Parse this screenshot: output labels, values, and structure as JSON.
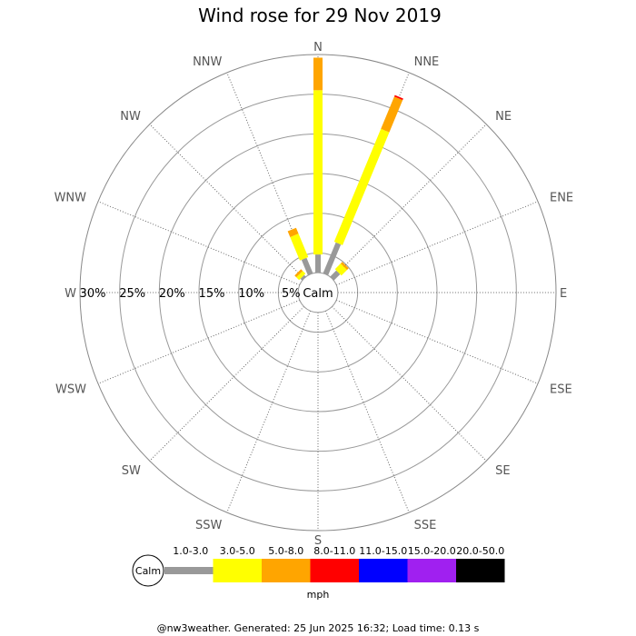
{
  "chart_data": {
    "type": "windrose",
    "title": "Wind rose for 29 Nov 2019",
    "directions": [
      "N",
      "NNE",
      "NE",
      "ENE",
      "E",
      "ESE",
      "SE",
      "SSE",
      "S",
      "SSW",
      "SW",
      "WSW",
      "W",
      "WNW",
      "NW",
      "NNW"
    ],
    "ring_labels": [
      "5%",
      "10%",
      "15%",
      "20%",
      "25%",
      "30%"
    ],
    "rmax_percent": 30,
    "calm_label": "Calm",
    "unit_label": "mph",
    "speed_bins": [
      {
        "label": "1.0-3.0",
        "color": "#999999"
      },
      {
        "label": "3.0-5.0",
        "color": "#ffff00"
      },
      {
        "label": "5.0-8.0",
        "color": "#ffa500"
      },
      {
        "label": "8.0-11.0",
        "color": "#ff0000"
      },
      {
        "label": "11.0-15.0",
        "color": "#0000ff"
      },
      {
        "label": "15.0-20.0",
        "color": "#a020f0"
      },
      {
        "label": "20.0-50.0",
        "color": "#000000"
      }
    ],
    "calm_radius_percent": 2.5,
    "cumulative_percent": [
      [
        4.8,
        25.5,
        29.6,
        29.6,
        29.6,
        29.6,
        29.6
      ],
      [
        6.7,
        22.1,
        26.5,
        26.7,
        26.7,
        26.7,
        26.7
      ],
      [
        3.6,
        4.6,
        4.9,
        4.9,
        4.9,
        4.9,
        4.9
      ],
      [
        0,
        0,
        0,
        0,
        0,
        0,
        0
      ],
      [
        0,
        0,
        0,
        0,
        0,
        0,
        0
      ],
      [
        0,
        0,
        0,
        0,
        0,
        0,
        0
      ],
      [
        0,
        0,
        0,
        0,
        0,
        0,
        0
      ],
      [
        0,
        0,
        0,
        0,
        0,
        0,
        0
      ],
      [
        0,
        0,
        0,
        0,
        0,
        0,
        0
      ],
      [
        0,
        0,
        0,
        0,
        0,
        0,
        0
      ],
      [
        0,
        0,
        0,
        0,
        0,
        0,
        0
      ],
      [
        0,
        0,
        0,
        0,
        0,
        0,
        0
      ],
      [
        0,
        0,
        0,
        0,
        0,
        0,
        0
      ],
      [
        0,
        0,
        0,
        0,
        0,
        0,
        0
      ],
      [
        2.8,
        3.3,
        3.6,
        3.6,
        3.6,
        3.6,
        3.6
      ],
      [
        4.6,
        7.8,
        8.6,
        8.6,
        8.6,
        8.6,
        8.6
      ]
    ]
  },
  "footer": "@nw3weather. Generated: 25 Jun 2025 16:32; Load time: 0.13 s"
}
